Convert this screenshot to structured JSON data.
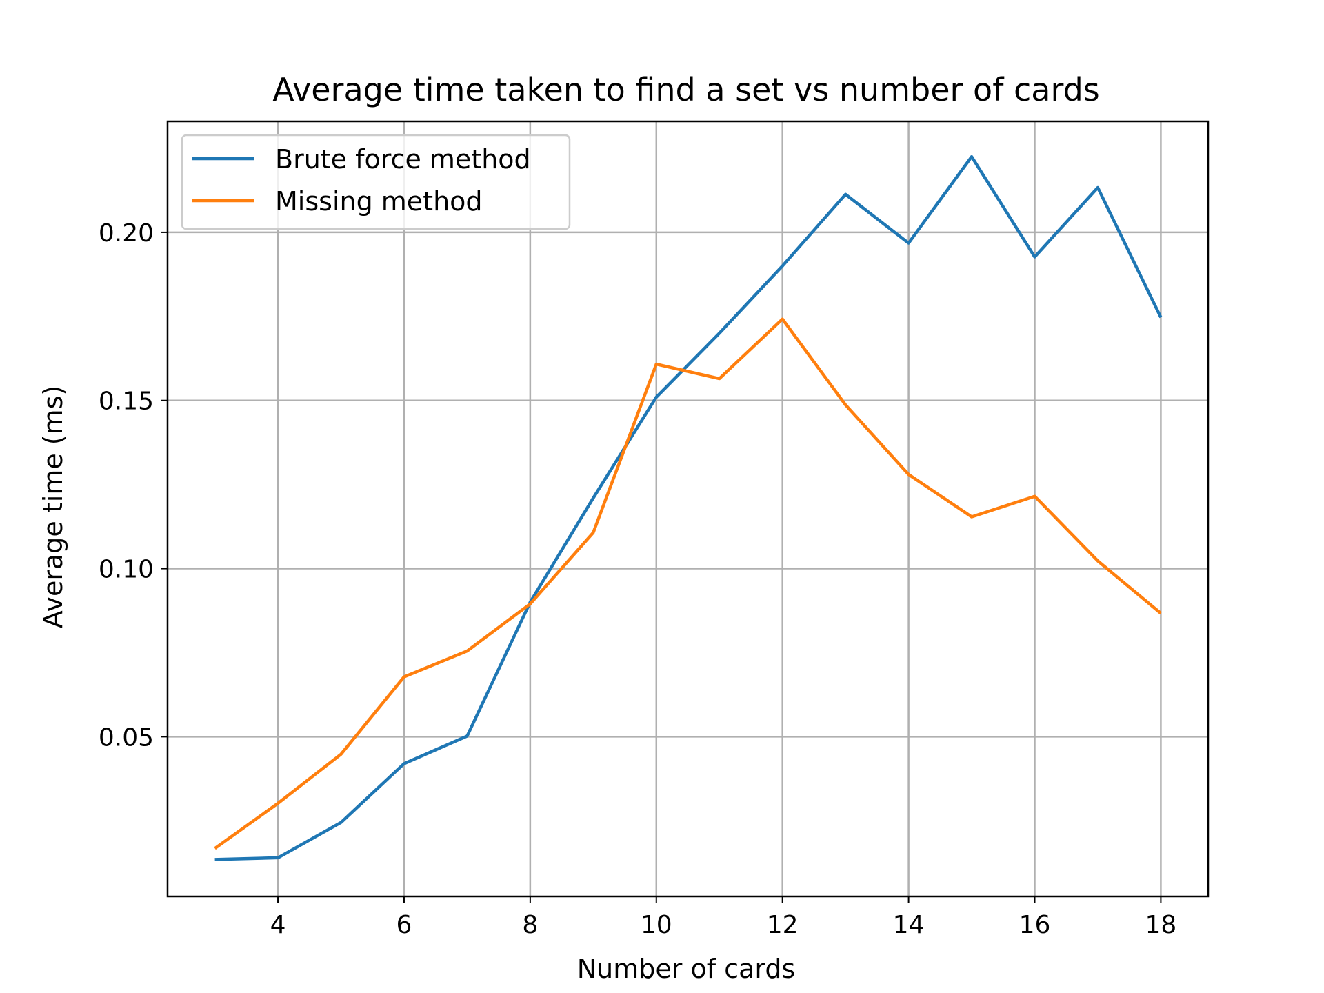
{
  "chart_data": {
    "type": "line",
    "title": "Average time taken to find a set vs number of cards",
    "xlabel": "Number of cards",
    "ylabel": "Average time (ms)",
    "x": [
      3,
      4,
      5,
      6,
      7,
      8,
      9,
      10,
      11,
      12,
      13,
      14,
      15,
      16,
      17,
      18
    ],
    "xlim": [
      2.25,
      18.75
    ],
    "ylim": [
      0.0025,
      0.233
    ],
    "xticks": [
      4,
      6,
      8,
      10,
      12,
      14,
      16,
      18
    ],
    "yticks": [
      0.05,
      0.1,
      0.15,
      0.2
    ],
    "xtick_labels": [
      "4",
      "6",
      "8",
      "10",
      "12",
      "14",
      "16",
      "18"
    ],
    "ytick_labels": [
      "0.05",
      "0.10",
      "0.15",
      "0.20"
    ],
    "grid": true,
    "legend_position": "top-left",
    "series": [
      {
        "name": "Brute force method",
        "color": "#1f77b4",
        "values": [
          0.0135,
          0.014,
          0.0245,
          0.042,
          0.0502,
          0.09,
          0.121,
          0.151,
          0.17,
          0.19,
          0.2113,
          0.1968,
          0.2225,
          0.1927,
          0.2133,
          0.1747
        ]
      },
      {
        "name": "Missing method",
        "color": "#ff7f0e",
        "values": [
          0.0168,
          0.0302,
          0.0448,
          0.0678,
          0.0755,
          0.0895,
          0.1107,
          0.1608,
          0.1565,
          0.1742,
          0.1487,
          0.128,
          0.1154,
          0.1215,
          0.1023,
          0.0867
        ]
      }
    ]
  }
}
